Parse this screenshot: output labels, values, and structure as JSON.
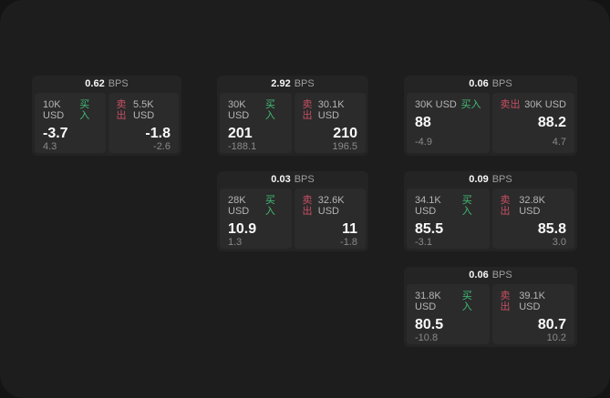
{
  "app": {
    "unit_label": "BPS",
    "buy_label": "买入",
    "sell_label": "卖出"
  },
  "colors": {
    "buy": "#41bd77",
    "sell": "#c74f63",
    "surface": "#1d1d1d",
    "card": "#242424",
    "tile": "#2b2b2b"
  },
  "cards": [
    {
      "bps": "0.62",
      "row": 1,
      "col": 1,
      "buy": {
        "amount": "10K USD",
        "value": "-3.7",
        "change": "4.3"
      },
      "sell": {
        "amount": "5.5K USD",
        "value": "-1.8",
        "change": "-2.6"
      }
    },
    {
      "bps": "2.92",
      "row": 1,
      "col": 2,
      "buy": {
        "amount": "30K USD",
        "value": "201",
        "change": "-188.1"
      },
      "sell": {
        "amount": "30.1K USD",
        "value": "210",
        "change": "196.5"
      }
    },
    {
      "bps": "0.06",
      "row": 1,
      "col": 3,
      "buy": {
        "amount": "30K USD",
        "value": "88",
        "change": "-4.9"
      },
      "sell": {
        "amount": "30K USD",
        "value": "88.2",
        "change": "4.7"
      }
    },
    {
      "bps": "0.03",
      "row": 2,
      "col": 2,
      "buy": {
        "amount": "28K USD",
        "value": "10.9",
        "change": "1.3"
      },
      "sell": {
        "amount": "32.6K USD",
        "value": "11",
        "change": "-1.8"
      }
    },
    {
      "bps": "0.09",
      "row": 2,
      "col": 3,
      "buy": {
        "amount": "34.1K USD",
        "value": "85.5",
        "change": "-3.1"
      },
      "sell": {
        "amount": "32.8K USD",
        "value": "85.8",
        "change": "3.0"
      }
    },
    {
      "bps": "0.06",
      "row": 3,
      "col": 3,
      "buy": {
        "amount": "31.8K USD",
        "value": "80.5",
        "change": "-10.8"
      },
      "sell": {
        "amount": "39.1K USD",
        "value": "80.7",
        "change": "10.2"
      }
    }
  ]
}
